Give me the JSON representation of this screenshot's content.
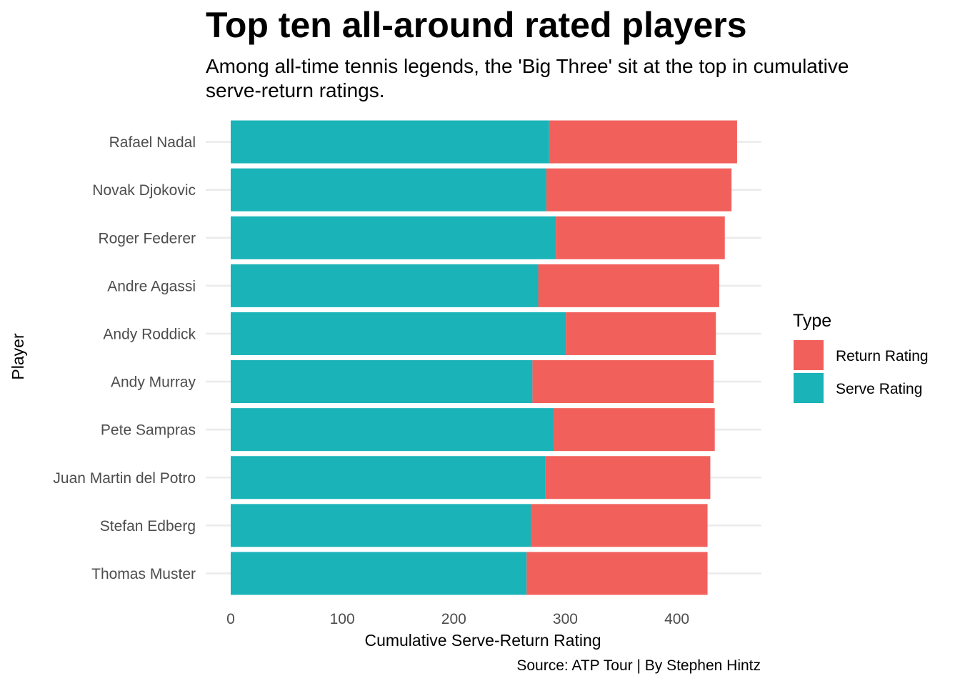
{
  "title": "Top ten all-around rated players",
  "subtitle": "Among all-time tennis legends, the 'Big Three' sit at the top in cumulative serve-return ratings.",
  "caption": "Source: ATP Tour | By Stephen Hintz",
  "chart_data": {
    "type": "bar",
    "orientation": "horizontal",
    "stacked": true,
    "title": "Top ten all-around rated players",
    "xlabel": "Cumulative Serve-Return Rating",
    "ylabel": "Player",
    "xlim": [
      0,
      475
    ],
    "x_ticks": [
      0,
      100,
      200,
      300,
      400
    ],
    "grid": true,
    "legend": {
      "title": "Type",
      "placement": "right"
    },
    "categories": [
      "Rafael Nadal",
      "Novak Djokovic",
      "Roger Federer",
      "Andre Agassi",
      "Andy Roddick",
      "Andy Murray",
      "Pete Sampras",
      "Juan Martin del Potro",
      "Stefan Edberg",
      "Thomas Muster"
    ],
    "series": [
      {
        "name": "Serve Rating",
        "color": "#19B3B8",
        "values": [
          285.5,
          283,
          291.5,
          275.7,
          300.5,
          270.5,
          289.5,
          282,
          269,
          265.3
        ]
      },
      {
        "name": "Return Rating",
        "color": "#F2605C",
        "values": [
          168.5,
          166,
          151.5,
          162.3,
          134.5,
          162.5,
          144.5,
          148,
          158.5,
          162.2
        ]
      }
    ],
    "legend_order": [
      "Return Rating",
      "Serve Rating"
    ]
  }
}
